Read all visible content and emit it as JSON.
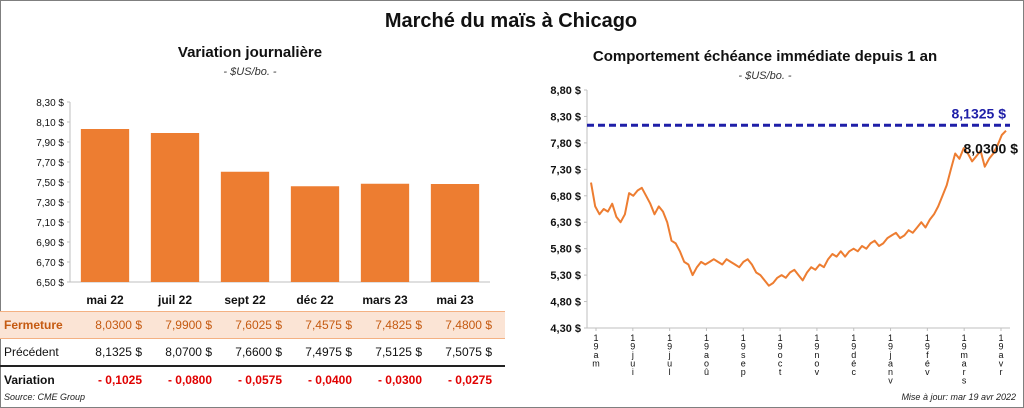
{
  "title": "Marché du maïs à Chicago",
  "left_chart": {
    "title": "Variation journalière",
    "unit": "- $US/bo. -"
  },
  "right_chart": {
    "title": "Comportement échéance immédiate depuis 1 an",
    "unit": "- $US/bo. -",
    "ref_label": "8,1325 $",
    "last_label": "8,0300 $"
  },
  "table": {
    "close_label": "Fermeture",
    "prev_label": "Précédent",
    "var_label": "Variation",
    "close": [
      "8,0300 $",
      "7,9900 $",
      "7,6025 $",
      "7,4575 $",
      "7,4825 $",
      "7,4800 $"
    ],
    "prev": [
      "8,1325 $",
      "8,0700 $",
      "7,6600 $",
      "7,4975 $",
      "7,5125 $",
      "7,5075 $"
    ],
    "variation": [
      "- 0,1025",
      "- 0,0800",
      "- 0,0575",
      "- 0,0400",
      "- 0,0300",
      "- 0,0275"
    ]
  },
  "source": "Source: CME Group",
  "updated": "Mise à jour: mar 19 avr 2022",
  "colors": {
    "bar": "#ed7d31",
    "line": "#ed7d31",
    "ref_line": "#1f1fa8",
    "negative": "#e00000"
  },
  "chart_data": [
    {
      "type": "bar",
      "title": "Variation journalière",
      "ylabel": "$US/bo.",
      "categories": [
        "mai 22",
        "juil 22",
        "sept 22",
        "déc 22",
        "mars 23",
        "mai 23"
      ],
      "values": [
        8.03,
        7.99,
        7.6025,
        7.4575,
        7.4825,
        7.48
      ],
      "ylim": [
        6.5,
        8.3
      ],
      "yticks": [
        "6,50 $",
        "6,70 $",
        "6,90 $",
        "7,10 $",
        "7,30 $",
        "7,50 $",
        "7,70 $",
        "7,90 $",
        "8,10 $",
        "8,30 $"
      ],
      "grid": false
    },
    {
      "type": "line",
      "title": "Comportement échéance immédiate depuis 1 an",
      "ylabel": "$US/bo.",
      "ylim": [
        4.3,
        8.8
      ],
      "yticks": [
        "4,30 $",
        "4,80 $",
        "5,30 $",
        "5,80 $",
        "6,30 $",
        "6,80 $",
        "7,30 $",
        "7,80 $",
        "8,30 $",
        "8,80 $"
      ],
      "xticks": [
        "1 9 a m",
        "1 9 j u i",
        "1 9 j u l",
        "1 9 a o û",
        "1 9 s e p",
        "1 9 o c t",
        "1 9 n o v",
        "1 9 d é c",
        "1 9 j a n v",
        "1 9 f é v",
        "1 9 m a r s",
        "1 9 a v r"
      ],
      "reference_line": 8.1325,
      "points": [
        [
          0,
          7.05
        ],
        [
          1,
          6.6
        ],
        [
          2,
          6.45
        ],
        [
          3,
          6.55
        ],
        [
          4,
          6.5
        ],
        [
          5,
          6.65
        ],
        [
          6,
          6.4
        ],
        [
          7,
          6.3
        ],
        [
          8,
          6.45
        ],
        [
          9,
          6.85
        ],
        [
          10,
          6.8
        ],
        [
          11,
          6.9
        ],
        [
          12,
          6.95
        ],
        [
          13,
          6.8
        ],
        [
          14,
          6.65
        ],
        [
          15,
          6.45
        ],
        [
          16,
          6.6
        ],
        [
          17,
          6.5
        ],
        [
          18,
          6.3
        ],
        [
          19,
          5.95
        ],
        [
          20,
          5.9
        ],
        [
          21,
          5.75
        ],
        [
          22,
          5.55
        ],
        [
          23,
          5.5
        ],
        [
          24,
          5.3
        ],
        [
          25,
          5.45
        ],
        [
          26,
          5.55
        ],
        [
          27,
          5.5
        ],
        [
          28,
          5.55
        ],
        [
          29,
          5.6
        ],
        [
          30,
          5.55
        ],
        [
          31,
          5.5
        ],
        [
          32,
          5.6
        ],
        [
          33,
          5.55
        ],
        [
          34,
          5.5
        ],
        [
          35,
          5.45
        ],
        [
          36,
          5.55
        ],
        [
          37,
          5.6
        ],
        [
          38,
          5.5
        ],
        [
          39,
          5.35
        ],
        [
          40,
          5.3
        ],
        [
          41,
          5.2
        ],
        [
          42,
          5.1
        ],
        [
          43,
          5.15
        ],
        [
          44,
          5.25
        ],
        [
          45,
          5.3
        ],
        [
          46,
          5.25
        ],
        [
          47,
          5.35
        ],
        [
          48,
          5.4
        ],
        [
          49,
          5.3
        ],
        [
          50,
          5.2
        ],
        [
          51,
          5.35
        ],
        [
          52,
          5.45
        ],
        [
          53,
          5.4
        ],
        [
          54,
          5.5
        ],
        [
          55,
          5.45
        ],
        [
          56,
          5.6
        ],
        [
          57,
          5.7
        ],
        [
          58,
          5.65
        ],
        [
          59,
          5.75
        ],
        [
          60,
          5.65
        ],
        [
          61,
          5.75
        ],
        [
          62,
          5.8
        ],
        [
          63,
          5.75
        ],
        [
          64,
          5.85
        ],
        [
          65,
          5.8
        ],
        [
          66,
          5.9
        ],
        [
          67,
          5.95
        ],
        [
          68,
          5.85
        ],
        [
          69,
          5.9
        ],
        [
          70,
          6.0
        ],
        [
          71,
          6.05
        ],
        [
          72,
          6.1
        ],
        [
          73,
          6.0
        ],
        [
          74,
          6.05
        ],
        [
          75,
          6.15
        ],
        [
          76,
          6.1
        ],
        [
          77,
          6.2
        ],
        [
          78,
          6.3
        ],
        [
          79,
          6.2
        ],
        [
          80,
          6.35
        ],
        [
          81,
          6.45
        ],
        [
          82,
          6.6
        ],
        [
          83,
          6.8
        ],
        [
          84,
          7.0
        ],
        [
          85,
          7.3
        ],
        [
          86,
          7.6
        ],
        [
          87,
          7.5
        ],
        [
          88,
          7.7
        ],
        [
          89,
          7.6
        ],
        [
          90,
          7.45
        ],
        [
          91,
          7.55
        ],
        [
          92,
          7.65
        ],
        [
          93,
          7.35
        ],
        [
          94,
          7.5
        ],
        [
          95,
          7.6
        ],
        [
          96,
          7.75
        ],
        [
          97,
          7.95
        ],
        [
          98,
          8.03
        ]
      ],
      "grid": false
    }
  ]
}
